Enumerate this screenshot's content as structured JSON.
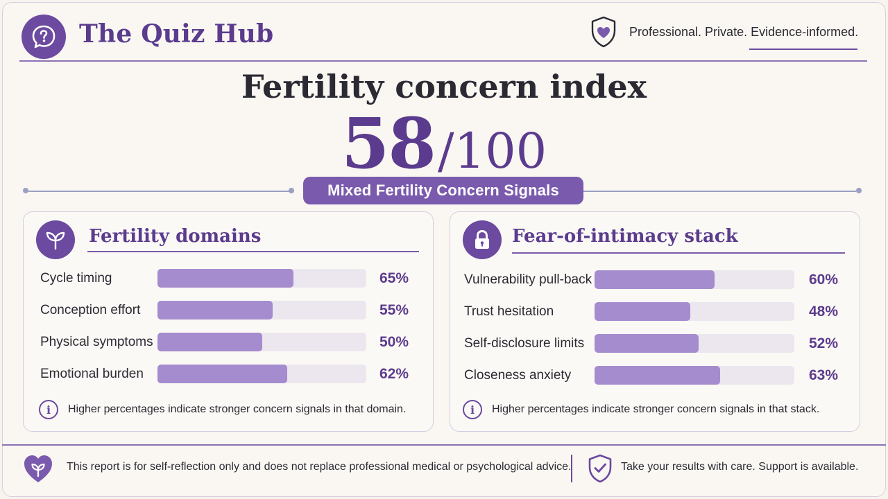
{
  "brand": {
    "title": "The Quiz Hub",
    "icon": "question-bubble-icon",
    "tagline": "Professional. Private. Evidence-informed."
  },
  "hero": {
    "title": "Fertility concern index",
    "score": "58",
    "score_max": "/100",
    "result_label": "Mixed Fertility Concern Signals"
  },
  "cards": [
    {
      "title": "Fertility domains",
      "icon": "sprout-icon",
      "rows": [
        {
          "label": "Cycle timing",
          "value": 65,
          "pct": "65%"
        },
        {
          "label": "Conception effort",
          "value": 55,
          "pct": "55%"
        },
        {
          "label": "Physical symptoms",
          "value": 50,
          "pct": "50%"
        },
        {
          "label": "Emotional burden",
          "value": 62,
          "pct": "62%"
        }
      ],
      "note": "Higher percentages indicate stronger concern signals in that domain."
    },
    {
      "title": "Fear-of-intimacy stack",
      "icon": "lock-icon",
      "rows": [
        {
          "label": "Vulnerability pull-back",
          "value": 60,
          "pct": "60%"
        },
        {
          "label": "Trust hesitation",
          "value": 48,
          "pct": "48%"
        },
        {
          "label": "Self-disclosure limits",
          "value": 52,
          "pct": "52%"
        },
        {
          "label": "Closeness anxiety",
          "value": 63,
          "pct": "63%"
        }
      ],
      "note": "Higher percentages indicate stronger concern signals in that stack."
    }
  ],
  "footer": {
    "disclaimer": "This report is for self-reflection only and does not replace professional medical or psychological advice.",
    "support": "Take your results with care. Support is available."
  },
  "colors": {
    "accent": "#6b4aa0",
    "bar_fill": "#a58ccf",
    "bar_track": "#ece6ee",
    "background": "#faf7f2"
  }
}
